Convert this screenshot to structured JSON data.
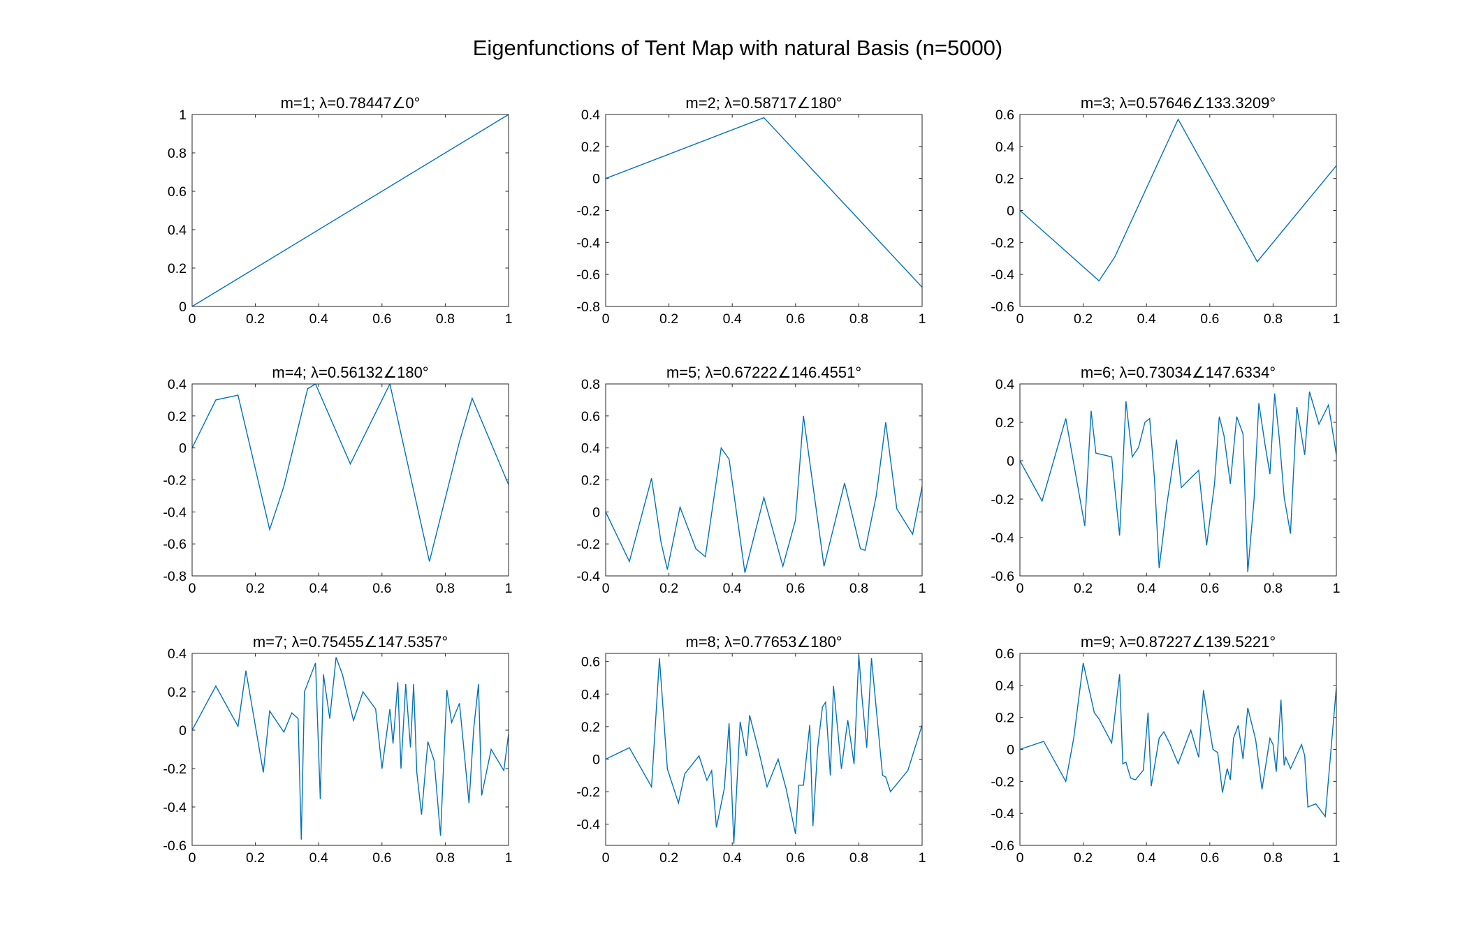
{
  "figure": {
    "title": "Eigenfunctions of Tent Map with natural Basis (n=5000)",
    "line_color": "#0072BD"
  },
  "chart_data": [
    {
      "type": "line",
      "title": "m=1; λ=0.78447∠0°",
      "xlabel": "",
      "ylabel": "",
      "xlim": [
        0,
        1
      ],
      "ylim": [
        0,
        1
      ],
      "xticks": [
        0,
        0.2,
        0.4,
        0.6,
        0.8,
        1
      ],
      "xtick_labels": [
        "0",
        "0.2",
        "0.4",
        "0.6",
        "0.8",
        "1"
      ],
      "yticks": [
        0,
        0.2,
        0.4,
        0.6,
        0.8,
        1
      ],
      "ytick_labels": [
        "0",
        "0.2",
        "0.4",
        "0.6",
        "0.8",
        "1"
      ],
      "grid": false,
      "series": [
        {
          "x": [
            0,
            1
          ],
          "y": [
            0,
            1
          ]
        }
      ]
    },
    {
      "type": "line",
      "title": "m=2; λ=0.58717∠180°",
      "xlabel": "",
      "ylabel": "",
      "xlim": [
        0,
        1
      ],
      "ylim": [
        -0.8,
        0.4
      ],
      "xticks": [
        0,
        0.2,
        0.4,
        0.6,
        0.8,
        1
      ],
      "xtick_labels": [
        "0",
        "0.2",
        "0.4",
        "0.6",
        "0.8",
        "1"
      ],
      "yticks": [
        -0.8,
        -0.6,
        -0.4,
        -0.2,
        0,
        0.2,
        0.4
      ],
      "ytick_labels": [
        "-0.8",
        "-0.6",
        "-0.4",
        "-0.2",
        "0",
        "0.2",
        "0.4"
      ],
      "grid": false,
      "series": [
        {
          "x": [
            0,
            0.5,
            1
          ],
          "y": [
            0,
            0.38,
            -0.68
          ]
        }
      ]
    },
    {
      "type": "line",
      "title": "m=3; λ=0.57646∠133.3209°",
      "xlabel": "",
      "ylabel": "",
      "xlim": [
        0,
        1
      ],
      "ylim": [
        -0.6,
        0.6
      ],
      "xticks": [
        0,
        0.2,
        0.4,
        0.6,
        0.8,
        1
      ],
      "xtick_labels": [
        "0",
        "0.2",
        "0.4",
        "0.6",
        "0.8",
        "1"
      ],
      "yticks": [
        -0.6,
        -0.4,
        -0.2,
        0,
        0.2,
        0.4,
        0.6
      ],
      "ytick_labels": [
        "-0.6",
        "-0.4",
        "-0.2",
        "0",
        "0.2",
        "0.4",
        "0.6"
      ],
      "grid": false,
      "series": [
        {
          "x": [
            0,
            0.25,
            0.3,
            0.5,
            0.75,
            1
          ],
          "y": [
            0,
            -0.44,
            -0.29,
            0.57,
            -0.32,
            0.28
          ]
        }
      ]
    },
    {
      "type": "line",
      "title": "m=4; λ=0.56132∠180°",
      "xlabel": "",
      "ylabel": "",
      "xlim": [
        0,
        1
      ],
      "ylim": [
        -0.8,
        0.4
      ],
      "xticks": [
        0,
        0.2,
        0.4,
        0.6,
        0.8,
        1
      ],
      "xtick_labels": [
        "0",
        "0.2",
        "0.4",
        "0.6",
        "0.8",
        "1"
      ],
      "yticks": [
        -0.8,
        -0.6,
        -0.4,
        -0.2,
        0,
        0.2,
        0.4
      ],
      "ytick_labels": [
        "-0.8",
        "-0.6",
        "-0.4",
        "-0.2",
        "0",
        "0.2",
        "0.4"
      ],
      "grid": false,
      "series": [
        {
          "x": [
            0,
            0.075,
            0.145,
            0.245,
            0.29,
            0.365,
            0.39,
            0.5,
            0.625,
            0.75,
            0.845,
            0.885,
            1
          ],
          "y": [
            0,
            0.3,
            0.33,
            -0.51,
            -0.24,
            0.37,
            0.4,
            -0.1,
            0.4,
            -0.71,
            0.04,
            0.31,
            -0.23
          ]
        }
      ]
    },
    {
      "type": "line",
      "title": "m=5; λ=0.67222∠146.4551°",
      "xlabel": "",
      "ylabel": "",
      "xlim": [
        0,
        1
      ],
      "ylim": [
        -0.4,
        0.8
      ],
      "xticks": [
        0,
        0.2,
        0.4,
        0.6,
        0.8,
        1
      ],
      "xtick_labels": [
        "0",
        "0.2",
        "0.4",
        "0.6",
        "0.8",
        "1"
      ],
      "yticks": [
        -0.4,
        -0.2,
        0,
        0.2,
        0.4,
        0.6,
        0.8
      ],
      "ytick_labels": [
        "-0.4",
        "-0.2",
        "0",
        "0.2",
        "0.4",
        "0.6",
        "0.8"
      ],
      "grid": false,
      "series": [
        {
          "x": [
            0,
            0.075,
            0.145,
            0.175,
            0.195,
            0.235,
            0.285,
            0.315,
            0.365,
            0.39,
            0.44,
            0.5,
            0.56,
            0.6,
            0.625,
            0.69,
            0.755,
            0.805,
            0.82,
            0.855,
            0.885,
            0.92,
            0.97,
            1
          ],
          "y": [
            0,
            -0.31,
            0.21,
            -0.19,
            -0.36,
            0.03,
            -0.23,
            -0.28,
            0.4,
            0.33,
            -0.38,
            0.09,
            -0.34,
            -0.05,
            0.6,
            -0.34,
            0.18,
            -0.23,
            -0.24,
            0.1,
            0.56,
            0.02,
            -0.14,
            0.16
          ]
        }
      ]
    },
    {
      "type": "line",
      "title": "m=6; λ=0.73034∠147.6334°",
      "xlabel": "",
      "ylabel": "",
      "xlim": [
        0,
        1
      ],
      "ylim": [
        -0.6,
        0.4
      ],
      "xticks": [
        0,
        0.2,
        0.4,
        0.6,
        0.8,
        1
      ],
      "xtick_labels": [
        "0",
        "0.2",
        "0.4",
        "0.6",
        "0.8",
        "1"
      ],
      "yticks": [
        -0.6,
        -0.4,
        -0.2,
        0,
        0.2,
        0.4
      ],
      "ytick_labels": [
        "-0.6",
        "-0.4",
        "-0.2",
        "0",
        "0.2",
        "0.4"
      ],
      "grid": false,
      "series": [
        {
          "x": [
            0,
            0.07,
            0.145,
            0.205,
            0.225,
            0.24,
            0.29,
            0.315,
            0.335,
            0.355,
            0.375,
            0.395,
            0.41,
            0.425,
            0.44,
            0.465,
            0.495,
            0.51,
            0.54,
            0.565,
            0.59,
            0.615,
            0.63,
            0.645,
            0.665,
            0.685,
            0.705,
            0.72,
            0.74,
            0.755,
            0.775,
            0.79,
            0.805,
            0.82,
            0.835,
            0.855,
            0.875,
            0.9,
            0.915,
            0.945,
            0.975,
            1
          ],
          "y": [
            0,
            -0.21,
            0.22,
            -0.34,
            0.26,
            0.04,
            0.02,
            -0.39,
            0.31,
            0.02,
            0.07,
            0.2,
            0.22,
            -0.09,
            -0.56,
            -0.22,
            0.11,
            -0.14,
            -0.09,
            -0.05,
            -0.44,
            -0.12,
            0.23,
            0.13,
            -0.12,
            0.23,
            0.14,
            -0.58,
            -0.2,
            0.3,
            0.08,
            -0.07,
            0.35,
            0.11,
            -0.19,
            -0.38,
            0.28,
            0.03,
            0.36,
            0.19,
            0.29,
            0.03
          ]
        }
      ]
    },
    {
      "type": "line",
      "title": "m=7; λ=0.75455∠147.5357°",
      "xlabel": "",
      "ylabel": "",
      "xlim": [
        0,
        1
      ],
      "ylim": [
        -0.6,
        0.4
      ],
      "xticks": [
        0,
        0.2,
        0.4,
        0.6,
        0.8,
        1
      ],
      "xtick_labels": [
        "0",
        "0.2",
        "0.4",
        "0.6",
        "0.8",
        "1"
      ],
      "yticks": [
        -0.6,
        -0.4,
        -0.2,
        0,
        0.2,
        0.4
      ],
      "ytick_labels": [
        "-0.6",
        "-0.4",
        "-0.2",
        "0",
        "0.2",
        "0.4"
      ],
      "grid": false,
      "series": [
        {
          "x": [
            0,
            0.075,
            0.145,
            0.17,
            0.225,
            0.245,
            0.29,
            0.315,
            0.335,
            0.345,
            0.355,
            0.39,
            0.405,
            0.415,
            0.435,
            0.455,
            0.475,
            0.51,
            0.54,
            0.58,
            0.6,
            0.625,
            0.635,
            0.65,
            0.66,
            0.675,
            0.69,
            0.7,
            0.71,
            0.725,
            0.745,
            0.765,
            0.785,
            0.805,
            0.82,
            0.845,
            0.875,
            0.89,
            0.905,
            0.915,
            0.945,
            0.985,
            1
          ],
          "y": [
            0,
            0.23,
            0.02,
            0.31,
            -0.22,
            0.1,
            -0.01,
            0.09,
            0.06,
            -0.57,
            0.2,
            0.35,
            -0.36,
            0.29,
            0.06,
            0.38,
            0.29,
            0.05,
            0.2,
            0.11,
            -0.2,
            0.11,
            -0.07,
            0.25,
            -0.2,
            0.24,
            -0.09,
            0.24,
            -0.22,
            -0.44,
            -0.06,
            -0.16,
            -0.55,
            0.21,
            0.04,
            0.14,
            -0.38,
            0.01,
            0.24,
            -0.34,
            -0.1,
            -0.21,
            -0.02
          ]
        }
      ]
    },
    {
      "type": "line",
      "title": "m=8; λ=0.77653∠180°",
      "xlabel": "",
      "ylabel": "",
      "xlim": [
        0,
        1
      ],
      "ylim": [
        -0.53,
        0.65
      ],
      "xticks": [
        0,
        0.2,
        0.4,
        0.6,
        0.8,
        1
      ],
      "xtick_labels": [
        "0",
        "0.2",
        "0.4",
        "0.6",
        "0.8",
        "1"
      ],
      "yticks": [
        -0.4,
        -0.2,
        0,
        0.2,
        0.4,
        0.6
      ],
      "ytick_labels": [
        "-0.4",
        "-0.2",
        "0",
        "0.2",
        "0.4",
        "0.6"
      ],
      "grid": false,
      "series": [
        {
          "x": [
            0,
            0.075,
            0.145,
            0.17,
            0.195,
            0.23,
            0.25,
            0.295,
            0.32,
            0.335,
            0.35,
            0.375,
            0.39,
            0.405,
            0.425,
            0.445,
            0.455,
            0.485,
            0.51,
            0.545,
            0.57,
            0.6,
            0.61,
            0.625,
            0.645,
            0.655,
            0.67,
            0.685,
            0.695,
            0.71,
            0.72,
            0.745,
            0.765,
            0.785,
            0.8,
            0.81,
            0.825,
            0.84,
            0.875,
            0.885,
            0.9,
            0.955,
            1
          ],
          "y": [
            0,
            0.07,
            -0.17,
            0.62,
            -0.06,
            -0.27,
            -0.09,
            0.02,
            -0.13,
            -0.07,
            -0.42,
            -0.18,
            0.22,
            -0.52,
            0.23,
            0.02,
            0.27,
            0.04,
            -0.17,
            0.0,
            -0.18,
            -0.46,
            -0.16,
            -0.16,
            0.21,
            -0.41,
            0.07,
            0.32,
            0.35,
            -0.1,
            0.45,
            -0.06,
            0.24,
            -0.03,
            0.64,
            0.38,
            0.07,
            0.62,
            -0.1,
            -0.11,
            -0.2,
            -0.07,
            0.21
          ]
        }
      ]
    },
    {
      "type": "line",
      "title": "m=9; λ=0.87227∠139.5221°",
      "xlabel": "",
      "ylabel": "",
      "xlim": [
        0,
        1
      ],
      "ylim": [
        -0.6,
        0.6
      ],
      "xticks": [
        0,
        0.2,
        0.4,
        0.6,
        0.8,
        1
      ],
      "xtick_labels": [
        "0",
        "0.2",
        "0.4",
        "0.6",
        "0.8",
        "1"
      ],
      "yticks": [
        -0.6,
        -0.4,
        -0.2,
        0,
        0.2,
        0.4,
        0.6
      ],
      "ytick_labels": [
        "-0.6",
        "-0.4",
        "-0.2",
        "0",
        "0.2",
        "0.4",
        "0.6"
      ],
      "grid": false,
      "series": [
        {
          "x": [
            0,
            0.075,
            0.145,
            0.17,
            0.2,
            0.235,
            0.25,
            0.29,
            0.315,
            0.325,
            0.335,
            0.35,
            0.365,
            0.39,
            0.405,
            0.415,
            0.44,
            0.455,
            0.475,
            0.5,
            0.54,
            0.565,
            0.58,
            0.59,
            0.61,
            0.625,
            0.64,
            0.655,
            0.665,
            0.675,
            0.69,
            0.705,
            0.72,
            0.745,
            0.765,
            0.79,
            0.8,
            0.81,
            0.825,
            0.835,
            0.84,
            0.855,
            0.89,
            0.9,
            0.91,
            0.935,
            0.965,
            1
          ],
          "y": [
            0,
            0.05,
            -0.2,
            0.07,
            0.54,
            0.23,
            0.19,
            0.04,
            0.47,
            -0.09,
            -0.08,
            -0.18,
            -0.19,
            -0.13,
            0.23,
            -0.23,
            0.07,
            0.11,
            0.03,
            -0.09,
            0.12,
            -0.05,
            0.37,
            0.24,
            0.0,
            -0.02,
            -0.27,
            -0.12,
            -0.19,
            0.07,
            0.15,
            -0.06,
            0.26,
            0.06,
            -0.25,
            0.07,
            0.03,
            -0.14,
            0.31,
            -0.1,
            -0.05,
            -0.12,
            0.03,
            -0.04,
            -0.36,
            -0.34,
            -0.42,
            0.39
          ]
        }
      ]
    }
  ]
}
